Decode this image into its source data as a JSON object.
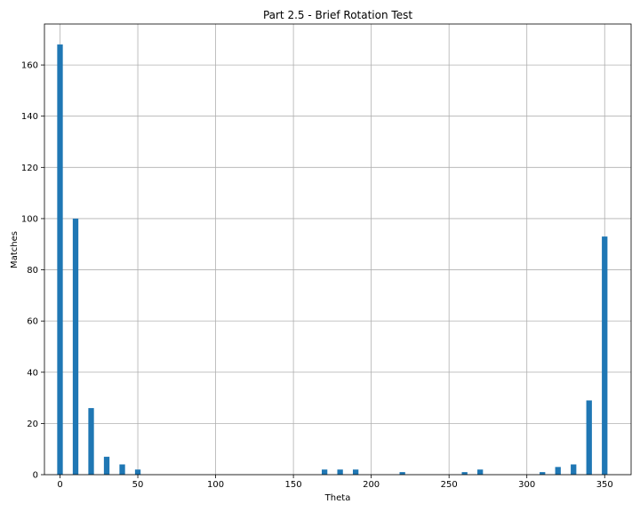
{
  "chart_data": {
    "type": "bar",
    "title": "Part 2.5 - Brief Rotation Test",
    "xlabel": "Theta",
    "ylabel": "Matches",
    "x": [
      0,
      10,
      20,
      30,
      40,
      50,
      60,
      70,
      80,
      90,
      100,
      110,
      120,
      130,
      140,
      150,
      160,
      170,
      180,
      190,
      200,
      210,
      220,
      230,
      240,
      250,
      260,
      270,
      280,
      290,
      300,
      310,
      320,
      330,
      340,
      350
    ],
    "values": [
      168,
      100,
      26,
      7,
      4,
      2,
      0,
      0,
      0,
      0,
      0,
      0,
      0,
      0,
      0,
      0,
      0,
      2,
      2,
      2,
      0,
      0,
      1,
      0,
      0,
      0,
      1,
      2,
      0,
      0,
      0,
      1,
      3,
      4,
      29,
      93
    ],
    "xlim": [
      -10,
      367
    ],
    "ylim": [
      0,
      176
    ],
    "xticks": [
      0,
      50,
      100,
      150,
      200,
      250,
      300,
      350
    ],
    "yticks": [
      0,
      20,
      40,
      60,
      80,
      100,
      120,
      140,
      160
    ],
    "grid": true,
    "bar_color": "#1f77b4",
    "grid_color": "#b0b0b0"
  }
}
